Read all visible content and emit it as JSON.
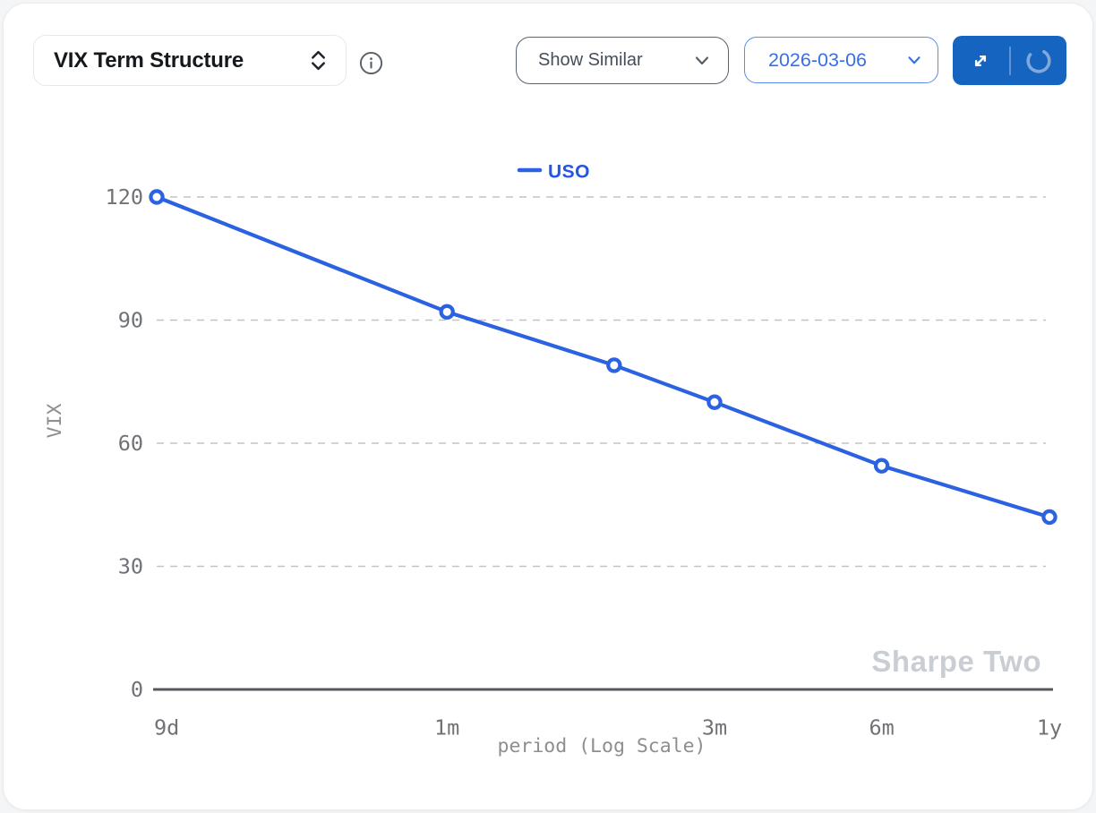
{
  "header": {
    "metric_select": {
      "value": "VIX Term Structure"
    },
    "similar_select": {
      "value": "Show Similar"
    },
    "date_select": {
      "value": "2026-03-06"
    },
    "expand_button": {
      "icon": "expand-diagonal-arrows"
    },
    "refresh_button": {
      "icon": "loading-spinner"
    },
    "info_button": {
      "icon": "info-circle"
    }
  },
  "watermark": "Sharpe Two",
  "colors": {
    "accent_blue": "#2b62e2",
    "legend_text_blue": "#2456e4",
    "button_blue": "#1565c0",
    "date_blue": "#3a6ee8",
    "grid": "#c3c3c3",
    "axis": "#55585c",
    "tick_label": "#6f7276",
    "axis_title": "#8b8e92",
    "watermark_gray": "#c9cdd4"
  },
  "chart_data": {
    "type": "line",
    "title": "",
    "xlabel": "period (Log Scale)",
    "ylabel": "VIX",
    "x_scale": "log",
    "ylim": [
      0,
      120
    ],
    "grid": "dashed-horizontal",
    "legend": [
      "USO"
    ],
    "legend_position": "top-center",
    "y_ticks": [
      0,
      30,
      60,
      90,
      120
    ],
    "x_ticks": [
      {
        "label": "9d",
        "days": 9
      },
      {
        "label": "1m",
        "days": 30
      },
      {
        "label": "3m",
        "days": 91
      },
      {
        "label": "6m",
        "days": 182
      },
      {
        "label": "1y",
        "days": 365
      }
    ],
    "series": [
      {
        "name": "USO",
        "color": "#2b62e2",
        "marker": "open-circle",
        "points": [
          {
            "period": "9d",
            "days": 9,
            "value": 120
          },
          {
            "period": "1m",
            "days": 30,
            "value": 92
          },
          {
            "period": "2m",
            "days": 60,
            "value": 79
          },
          {
            "period": "3m",
            "days": 91,
            "value": 70
          },
          {
            "period": "6m",
            "days": 182,
            "value": 54.5
          },
          {
            "period": "1y",
            "days": 365,
            "value": 42
          }
        ]
      }
    ]
  }
}
